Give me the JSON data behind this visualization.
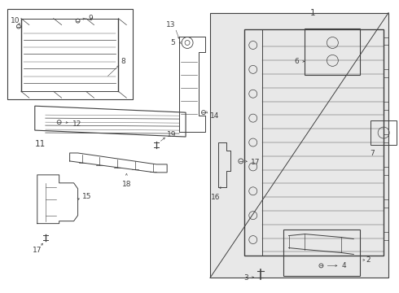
{
  "background_color": "#ffffff",
  "line_color": "#404040",
  "label_color": "#111111",
  "gray_fill": "#d8d8d8",
  "fig_width": 4.9,
  "fig_height": 3.6,
  "dpi": 100
}
